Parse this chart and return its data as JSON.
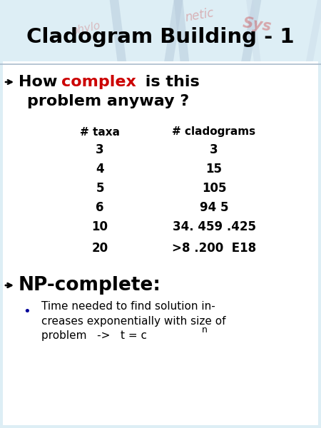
{
  "title": "Cladogram Building - 1",
  "bg_color": "#ddeef5",
  "title_color": "#000000",
  "bullet1_color": "#cc0000",
  "table_header_col1": "# taxa",
  "table_header_col2": "# cladograms",
  "table_rows": [
    [
      "3",
      "3"
    ],
    [
      "4",
      "15"
    ],
    [
      "5",
      "105"
    ],
    [
      "6",
      "94 5"
    ],
    [
      "10",
      "34. 459 .425"
    ],
    [
      "20",
      ">8 .200  E18"
    ]
  ],
  "bullet2_color": "#000000",
  "sub_bullet_color": "#000099",
  "white_bg_color": "#ffffff",
  "border_color": "#aabbcc"
}
